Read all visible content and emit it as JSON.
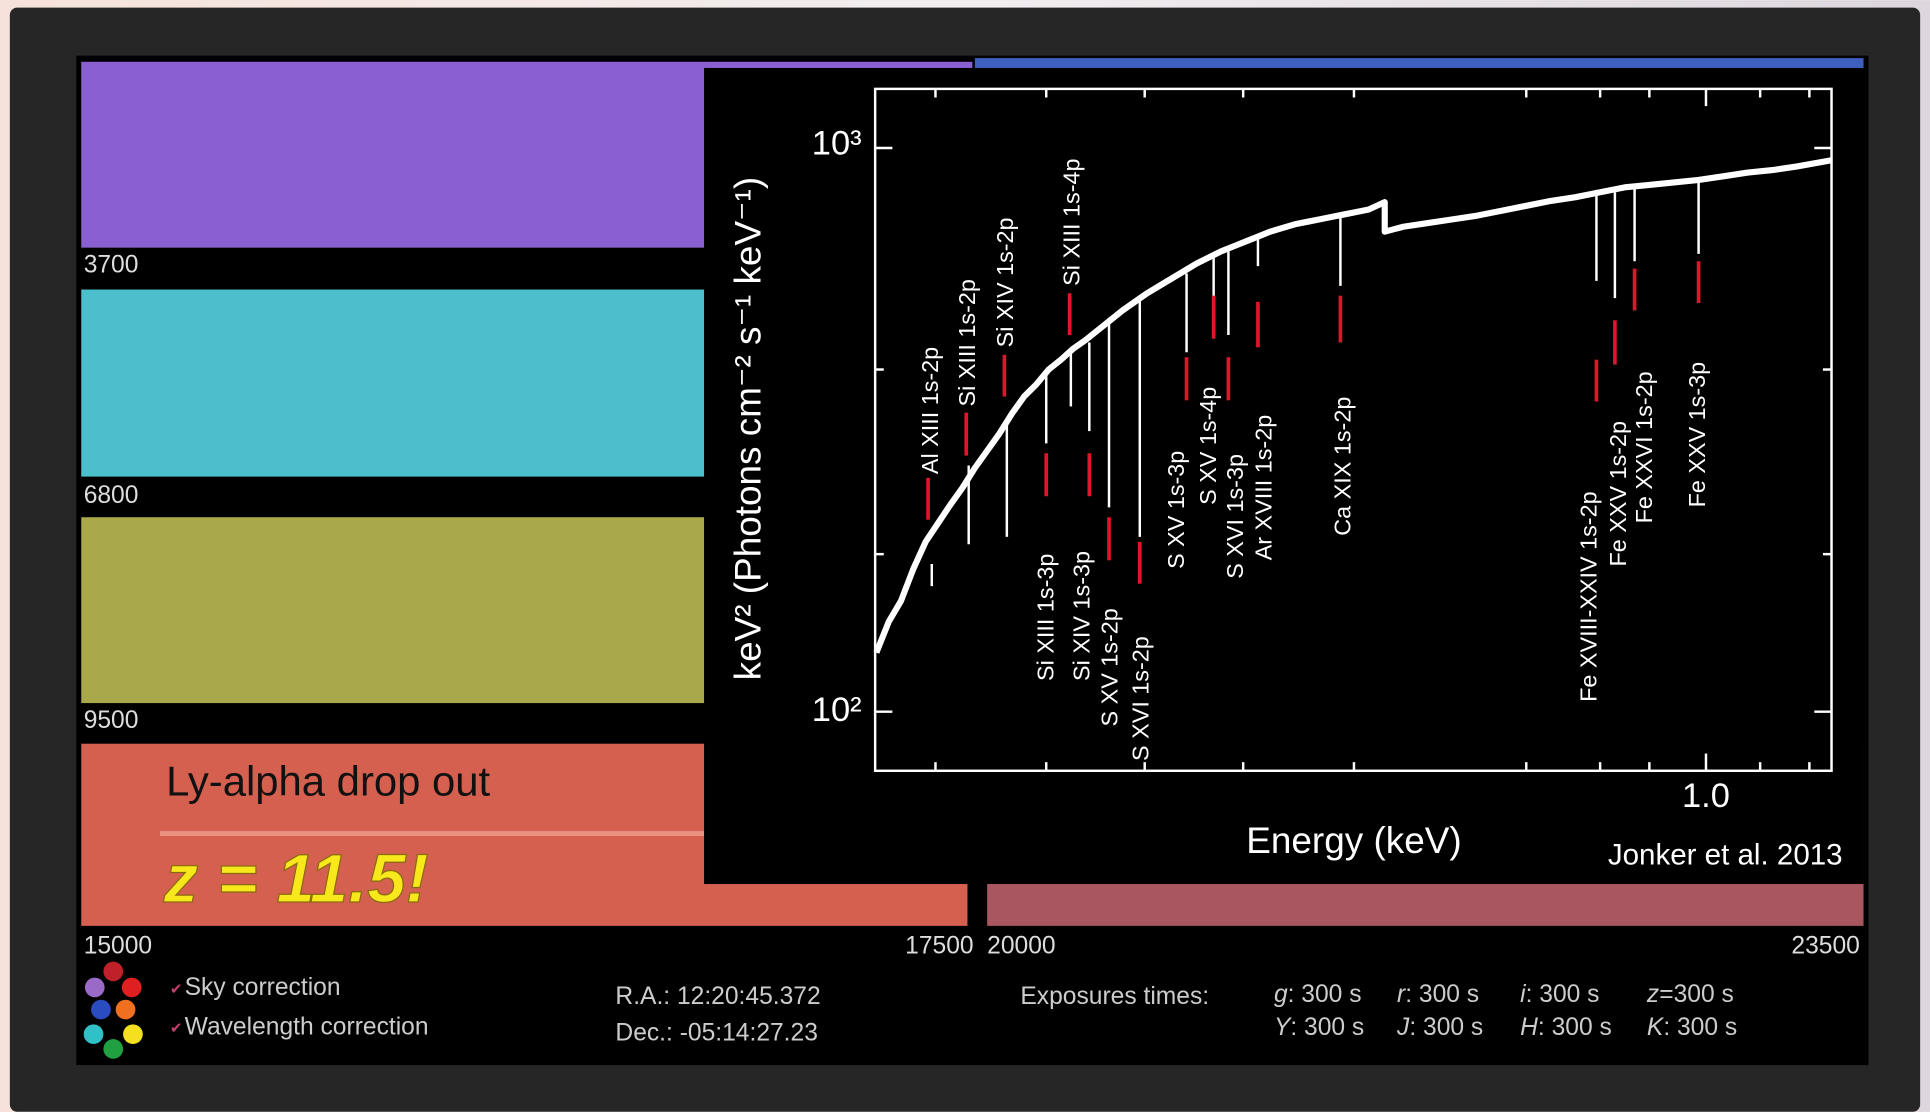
{
  "spectra": {
    "wavelength_labels": [
      "3700",
      "6800",
      "9500",
      "15000",
      "17500",
      "20000",
      "23500"
    ]
  },
  "annotation": {
    "text": "Ly-alpha drop out",
    "redshift": "z = 11.5!"
  },
  "inset": {
    "y_axis_label": "keV² (Photons cm⁻² s⁻¹ keV⁻¹)",
    "x_axis_label": "Energy (keV)",
    "y_tick_labels": [
      "10³",
      "10²"
    ],
    "x_tick_labels": [
      "1.0"
    ],
    "credit": "Jonker et al. 2013",
    "line_labels": [
      "Al XIII 1s-2p",
      "Si XIII 1s-2p",
      "Si XIV 1s-2p",
      "Si XIII 1s-4p",
      "Si XIII 1s-3p",
      "Si XIV 1s-3p",
      "S XV 1s-2p",
      "S XVI 1s-2p",
      "S XV 1s-3p",
      "S XV 1s-4p",
      "S XVI 1s-3p",
      "Ar XVIII 1s-2p",
      "Ca XIX 1s-2p",
      "Fe XVIII-XXIV 1s-2p",
      "Fe XXV 1s-2p",
      "Fe XXVI 1s-2p",
      "Fe XXV 1s-3p"
    ]
  },
  "footer": {
    "options": [
      "Sky correction",
      "Wavelength correction"
    ],
    "ra": "R.A.: 12:20:45.372",
    "dec": "Dec.: -05:14:27.23",
    "exposures_title": "Exposures times:",
    "exposures": [
      {
        "band": "g",
        "time": ": 300 s"
      },
      {
        "band": "r",
        "time": ": 300 s"
      },
      {
        "band": "i",
        "time": ": 300 s"
      },
      {
        "band": "z",
        "time": "=300 s"
      },
      {
        "band": "Y",
        "time": ": 300 s"
      },
      {
        "band": "J",
        "time": ": 300 s"
      },
      {
        "band": "H",
        "time": ": 300 s"
      },
      {
        "band": "K",
        "time": ": 300 s"
      }
    ]
  }
}
